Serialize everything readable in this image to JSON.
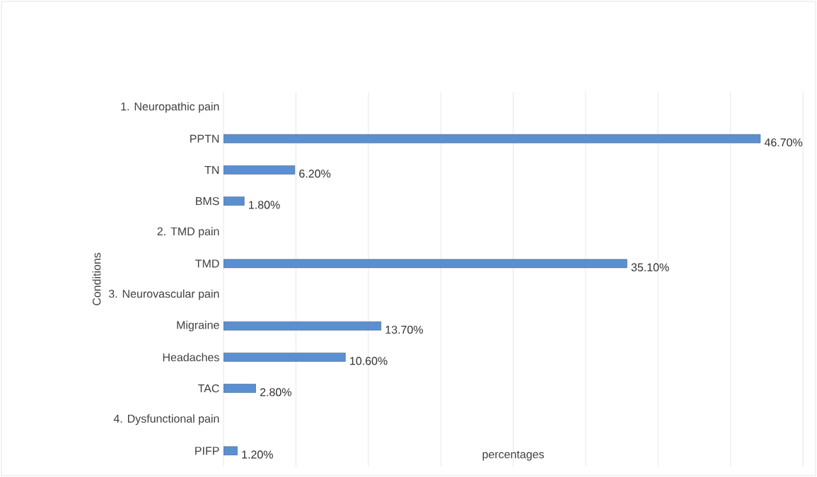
{
  "chart_data": {
    "type": "bar",
    "orientation": "horizontal",
    "ylabel": "Conditions",
    "xlabel": "percentages",
    "categories": [
      "1. Neuropathic pain",
      "PPTN",
      "TN",
      "BMS",
      "2. TMD pain",
      "TMD",
      "3. Neurovascular pain",
      "Migraine",
      "Headaches",
      "TAC",
      "4. Dysfunctional pain",
      "PIFP"
    ],
    "values": [
      null,
      46.7,
      6.2,
      1.8,
      null,
      35.1,
      null,
      13.7,
      10.6,
      2.8,
      null,
      1.2
    ],
    "value_labels": [
      null,
      "46.70%",
      "6.20%",
      "1.80%",
      null,
      "35.10%",
      null,
      "13.70%",
      "10.60%",
      "2.80%",
      null,
      "1.20%"
    ],
    "color": "#5b8fd0",
    "xlim": [
      0,
      50.4
    ],
    "xticks": [
      {
        "value": 0,
        "label": null
      },
      {
        "value": 6.3,
        "label": null
      },
      {
        "value": 12.6,
        "label": null
      },
      {
        "value": 18.9,
        "label": null
      },
      {
        "value": 25.2,
        "label": null
      },
      {
        "value": 31.5,
        "label": null
      },
      {
        "value": 37.8,
        "label": null
      },
      {
        "value": 44.1,
        "label": null
      },
      {
        "value": 50.4,
        "label": null
      }
    ],
    "grid": "x",
    "tick_labels": "y"
  }
}
